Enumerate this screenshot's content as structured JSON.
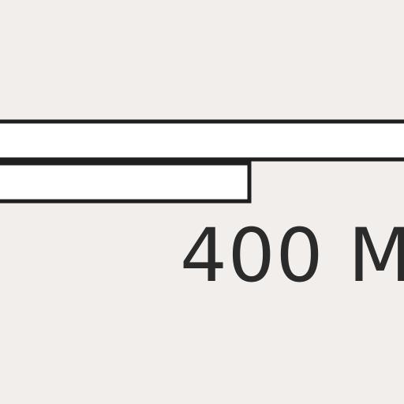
{
  "scale_bar": {
    "label": "400 M",
    "colors": {
      "background": "#f2eeeb",
      "bar_fill": "#ffffff",
      "bar_outline": "#1f1f1f",
      "label": "#2b2b2b"
    }
  }
}
